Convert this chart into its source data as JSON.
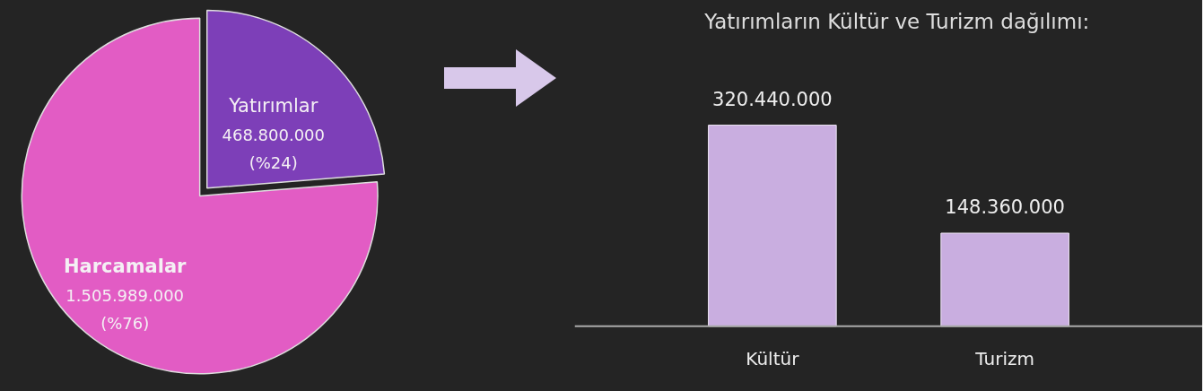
{
  "chart_data": [
    {
      "type": "pie",
      "categories": [
        "Yatırımlar",
        "Harcamalar"
      ],
      "values": [
        468800000,
        1505989000
      ],
      "colors": [
        "#7d3fb8",
        "#e25cc4"
      ],
      "value_labels": [
        "468.800.000\n(%24)",
        "1.505.989.000\n(%76)"
      ]
    },
    {
      "type": "bar",
      "title": "Yatırımların Kültür ve Turizm  dağılımı:",
      "categories": [
        "Kültür",
        "Turizm"
      ],
      "values": [
        320440000,
        148360000
      ],
      "color": "#c9aee0",
      "value_labels": [
        "320.440.000",
        "148.360.000"
      ]
    }
  ]
}
